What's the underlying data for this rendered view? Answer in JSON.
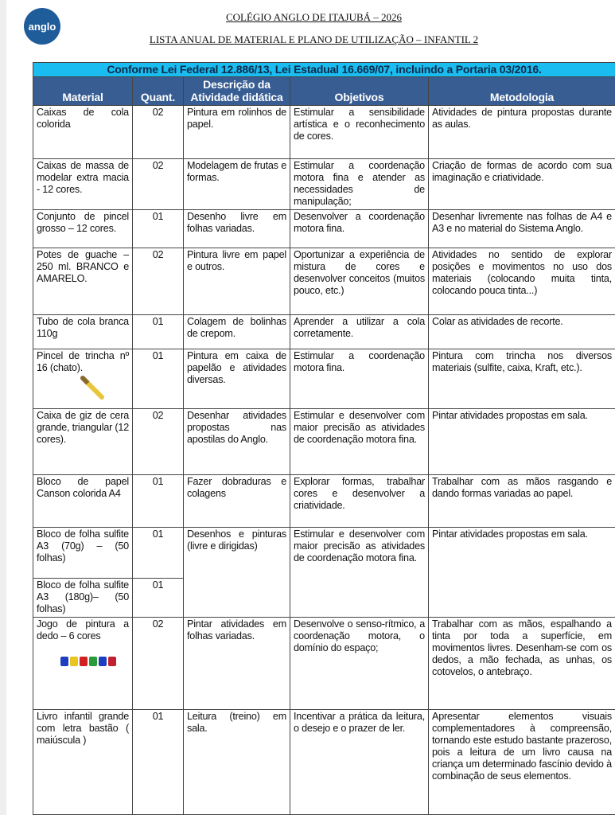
{
  "header": {
    "logo_text": "anglo",
    "title": "COLÉGIO ANGLO DE ITAJUBÁ – 2026",
    "subtitle": "LISTA ANUAL DE MATERIAL E PLANO DE UTILIZAÇÃO – INFANTIL 2"
  },
  "table": {
    "law": "Conforme Lei Federal 12.886/13, Lei Estadual 16.669/07, incluindo a Portaria 03/2016.",
    "columns": [
      "Material",
      "Quant.",
      "Descrição da Atividade didática",
      "Objetivos",
      "Metodologia"
    ],
    "rows": [
      {
        "material": "Caixas de cola colorida",
        "quant": "02",
        "desc": "Pintura em rolinhos de papel.",
        "obj": "Estimular a sensibilidade artística e o reconhecimento de cores.",
        "met": "Atividades de pintura propostas durante as aulas."
      },
      {
        "material": "Caixas de massa de modelar extra macia - 12 cores.",
        "quant": "02",
        "desc": "Modelagem de frutas e formas.",
        "obj": "Estimular a coordenação motora fina e atender as necessidades de manipulação;",
        "met": "Criação de formas de acordo com sua imaginação e criatividade."
      },
      {
        "material": "Conjunto de pincel grosso – 12 cores.",
        "quant": "01",
        "desc": "Desenho livre em folhas variadas.",
        "obj": "Desenvolver a coordenação motora fina.",
        "met": "Desenhar livremente nas folhas de A4 e A3 e no material do Sistema Anglo."
      },
      {
        "material": "Potes de guache – 250 ml. BRANCO e AMARELO.",
        "quant": "02",
        "desc": "Pintura livre em papel e outros.",
        "obj": "Oportunizar a experiência de mistura de cores e desenvolver conceitos (muitos pouco, etc.)",
        "met": "Atividades no sentido de explorar posições e movimentos no uso dos materiais (colocando muita tinta, colocando pouca tinta...)"
      },
      {
        "material": "Tubo de cola branca 110g",
        "quant": "01",
        "desc": "Colagem de bolinhas de crepom.",
        "obj": "Aprender a utilizar a cola corretamente.",
        "met": "Colar as atividades de recorte."
      },
      {
        "material": "Pincel de trincha nº 16 (chato).",
        "quant": "01",
        "desc": "Pintura em caixa de papelão e atividades diversas.",
        "obj": "Estimular a coordenação motora fina.",
        "met": "Pintura com trincha nos diversos materiais (sulfite, caixa, Kraft, etc.)."
      },
      {
        "material": "Caixa de giz de cera grande, triangular (12 cores).",
        "quant": "02",
        "desc": "Desenhar atividades propostas nas apostilas do Anglo.",
        "obj": "Estimular e desenvolver com maior precisão as atividades de coordenação motora fina.",
        "met": "Pintar atividades propostas em sala."
      },
      {
        "material": "Bloco de papel Canson colorida A4",
        "quant": "01",
        "desc": "Fazer dobraduras e colagens",
        "obj": "Explorar formas, trabalhar cores e desenvolver a criatividade.",
        "met": "Trabalhar com as mãos rasgando e dando formas variadas ao papel."
      },
      {
        "material": "Bloco de folha sulfite A3 (70g) – (50 folhas)",
        "quant": "01",
        "material2": "Bloco de folha sulfite A3 (180g)– (50 folhas)",
        "quant2": "01",
        "desc": "Desenhos e pinturas (livre e dirigidas)",
        "obj": "Estimular e desenvolver com maior precisão as atividades de coordenação motora fina.",
        "met": "Pintar atividades propostas em sala."
      },
      {
        "material": "Jogo de pintura a dedo – 6 cores",
        "quant": "02",
        "desc": "Pintar atividades em folhas variadas.",
        "obj": "Desenvolve o senso-rítmico, a coordenação motora, o domínio do espaço;",
        "met": "Trabalhar com as mãos, espalhando a tinta por toda a superfície, em movimentos livres. Desenham-se com os dedos, a mão fechada, as unhas, os cotovelos, o antebraço."
      },
      {
        "material": "Livro infantil grande com letra bastão ( maiúscula )",
        "quant": "01",
        "desc": "Leitura (treino) em sala.",
        "obj": "Incentivar a prática da leitura, o desejo e o prazer de ler.",
        "met": "Apresentar elementos visuais complementadores à compreensão, tornando este estudo bastante prazeroso, pois a leitura de um livro causa na criança um determinado fascínio devido à combinação de seus elementos."
      }
    ]
  },
  "colors": {
    "law_bg": "#1bbcf0",
    "header_bg": "#375d93"
  }
}
